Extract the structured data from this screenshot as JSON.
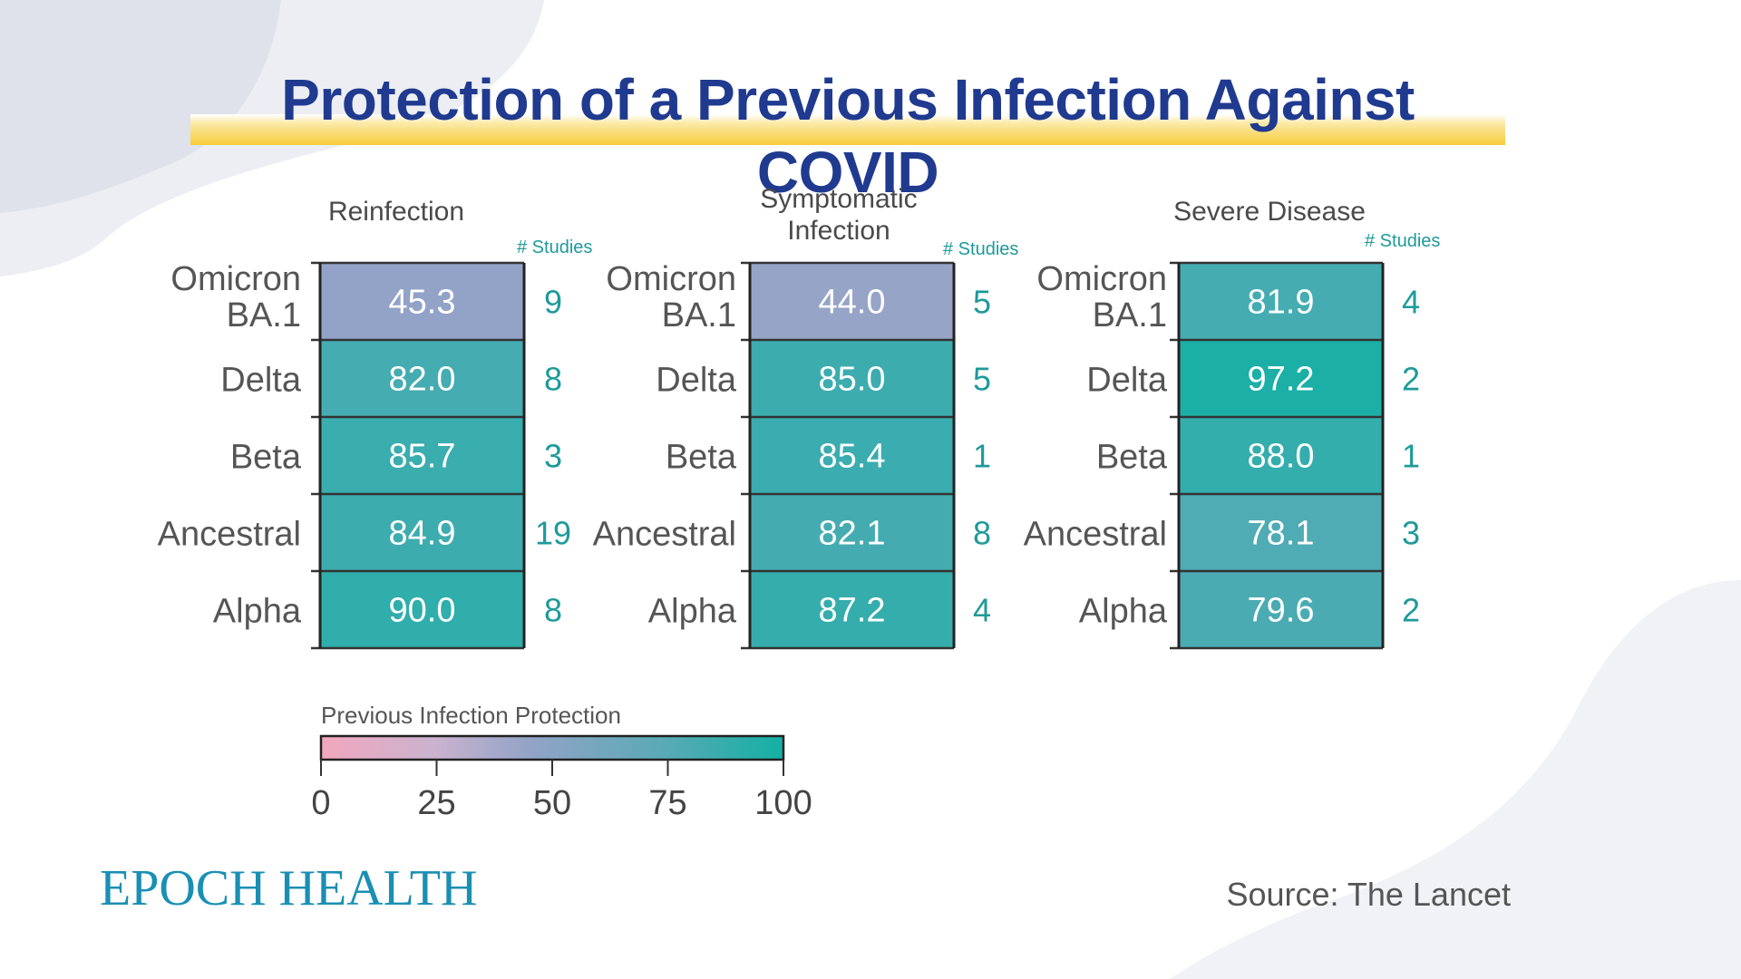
{
  "title": "Protection of a Previous Infection Against COVID",
  "studies_label": "# Studies",
  "colors": {
    "title": "#1f3a8f",
    "highlight": "#f7cd3a",
    "study_count": "#1f9a9a",
    "scale_low": "#f2a7bd",
    "scale_mid": "#93a3c7",
    "scale_high": "#13b0a4"
  },
  "chart_data": {
    "type": "heatmap",
    "rows": [
      "Omicron BA.1",
      "Delta",
      "Beta",
      "Ancestral",
      "Alpha"
    ],
    "panels": [
      {
        "title": "Reinfection",
        "values": [
          45.3,
          82.0,
          85.7,
          84.9,
          90.0
        ],
        "studies": [
          9,
          8,
          3,
          19,
          8
        ]
      },
      {
        "title": "Symptomatic Infection",
        "values": [
          44.0,
          85.0,
          85.4,
          82.1,
          87.2
        ],
        "studies": [
          5,
          5,
          1,
          8,
          4
        ]
      },
      {
        "title": "Severe Disease",
        "values": [
          81.9,
          97.2,
          88.0,
          78.1,
          79.6
        ],
        "studies": [
          4,
          2,
          1,
          3,
          2
        ]
      }
    ],
    "colorbar": {
      "title": "Previous Infection Protection",
      "min": 0,
      "max": 100,
      "ticks": [
        0,
        25,
        50,
        75,
        100
      ]
    }
  },
  "footer": {
    "logo": "EPOCH HEALTH",
    "source": "Source: The Lancet"
  }
}
